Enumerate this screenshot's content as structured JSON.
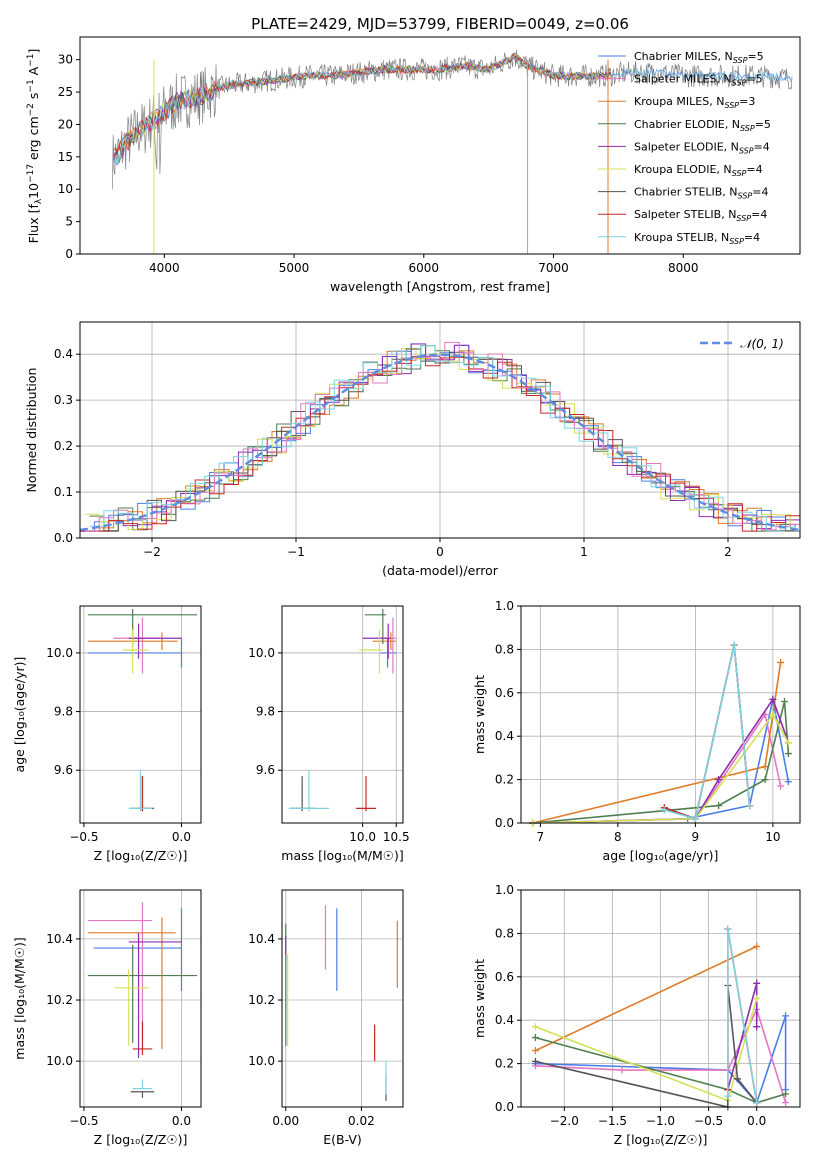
{
  "chart_data": [
    {
      "id": "spectrum",
      "type": "line",
      "title": "PLATE=2429, MJD=53799, FIBERID=0049, z=0.06",
      "xlabel": "wavelength [Angstrom, rest frame]",
      "ylabel_parts": [
        "Flux [f",
        "λ",
        "10",
        "−17",
        " erg cm",
        "−2",
        " s",
        "−1",
        " A",
        "−1",
        "]"
      ],
      "xlim": [
        3350,
        8900
      ],
      "ylim": [
        0,
        33.5
      ],
      "xticks": [
        4000,
        5000,
        6000,
        7000,
        8000
      ],
      "yticks": [
        0,
        5,
        10,
        15,
        20,
        25,
        30
      ],
      "grid": false,
      "legend_position": "upper right",
      "spectrum_x": [
        3600,
        3650,
        3700,
        3750,
        3800,
        3850,
        3900,
        3950,
        4000,
        4100,
        4200,
        4300,
        4400,
        4500,
        4700,
        4900,
        5100,
        5300,
        5500,
        5700,
        5900,
        6100,
        6300,
        6500,
        6600,
        6700,
        6800,
        7000,
        7200,
        7400,
        7600,
        7800,
        8000,
        8300,
        8600,
        8900
      ],
      "spectrum_y": [
        14.5,
        15.5,
        17,
        18,
        19,
        19.5,
        20.5,
        21,
        22,
        23.5,
        24,
        24.5,
        25.5,
        26,
        26.5,
        27,
        27.5,
        27.5,
        28,
        28.5,
        28.5,
        28.5,
        29,
        28.5,
        29.5,
        30.5,
        29,
        27.5,
        27.5,
        27.5,
        28,
        28,
        27.5,
        27.5,
        27.5,
        27
      ],
      "series": [
        {
          "name": "Chabrier MILES, N",
          "sub": "SSP",
          "n": "5",
          "color": "#4a7de8"
        },
        {
          "name": "Salpeter MILES, N",
          "sub": "SSP",
          "n": "5",
          "color": "#e377c2"
        },
        {
          "name": "Kroupa MILES, N",
          "sub": "SSP",
          "n": "3",
          "color": "#e07b28"
        },
        {
          "name": "Chabrier ELODIE, N",
          "sub": "SSP",
          "n": "5",
          "color": "#4f7f4f"
        },
        {
          "name": "Salpeter ELODIE, N",
          "sub": "SSP",
          "n": "4",
          "color": "#8e2db0"
        },
        {
          "name": "Kroupa ELODIE, N",
          "sub": "SSP",
          "n": "4",
          "color": "#d4e157"
        },
        {
          "name": "Chabrier STELIB, N",
          "sub": "SSP",
          "n": "4",
          "color": "#555555"
        },
        {
          "name": "Salpeter STELIB, N",
          "sub": "SSP",
          "n": "4",
          "color": "#c62828"
        },
        {
          "name": "Kroupa STELIB, N",
          "sub": "SSP",
          "n": "4",
          "color": "#7fd3e0"
        }
      ]
    },
    {
      "id": "residuals",
      "type": "line",
      "xlabel": "(data-model)/error",
      "ylabel": "Normed distribution",
      "xlim": [
        -2.5,
        2.5
      ],
      "ylim": [
        0,
        0.47
      ],
      "xticks": [
        -2,
        -1,
        0,
        1,
        2
      ],
      "yticks": [
        0.0,
        0.1,
        0.2,
        0.3,
        0.4
      ],
      "grid": true,
      "legend": "𝒩(0, 1)",
      "legend_position": "upper right",
      "normal_curve": {
        "mean": 0,
        "sigma": 1,
        "color": "#5b8ee0"
      }
    },
    {
      "id": "age_vs_Z",
      "type": "scatter",
      "xlabel": "Z [log₁₀(Z/Z☉)]",
      "ylabel": "age  [log₁₀(age/yr)]",
      "xlim": [
        -0.52,
        0.1
      ],
      "ylim": [
        9.42,
        10.16
      ],
      "xticks": [
        -0.5,
        0.0
      ],
      "yticks": [
        9.6,
        9.8,
        10.0
      ],
      "grid": true,
      "points": [
        {
          "x": 0.0,
          "y": 10.0,
          "xerr": [
            0.48,
            0.0
          ],
          "yerr": [
            0.05,
            0.05
          ]
        },
        {
          "x": -0.2,
          "y": 10.05,
          "xerr": [
            0.15,
            0.08
          ],
          "yerr": [
            0.12,
            0.07
          ]
        },
        {
          "x": -0.1,
          "y": 10.04,
          "xerr": [
            0.38,
            0.08
          ],
          "yerr": [
            0.03,
            0.03
          ]
        },
        {
          "x": -0.25,
          "y": 10.13,
          "xerr": [
            0.23,
            0.33
          ],
          "yerr": [
            0.1,
            0.02
          ]
        },
        {
          "x": -0.22,
          "y": 10.05,
          "xerr": [
            0.05,
            0.22
          ],
          "yerr": [
            0.07,
            0.05
          ]
        },
        {
          "x": -0.25,
          "y": 10.01,
          "xerr": [
            0.05,
            0.08
          ],
          "yerr": [
            0.08,
            0.07
          ]
        },
        {
          "x": -0.2,
          "y": 9.47,
          "xerr": [
            0.06,
            0.06
          ],
          "yerr": [
            0.01,
            0.11
          ]
        },
        {
          "x": -0.2,
          "y": 9.47,
          "xerr": [
            0.03,
            0.03
          ],
          "yerr": [
            0.01,
            0.11
          ]
        },
        {
          "x": -0.21,
          "y": 9.47,
          "xerr": [
            0.06,
            0.06
          ],
          "yerr": [
            0.01,
            0.13
          ]
        }
      ]
    },
    {
      "id": "age_vs_mass",
      "type": "scatter",
      "xlabel": "mass [log₁₀(M/M☉)]",
      "ylabel": "",
      "xlim": [
        8.8,
        10.6
      ],
      "ylim": [
        9.42,
        10.16
      ],
      "xticks": [
        10.0,
        10.5
      ],
      "yticks": [
        9.6,
        9.8,
        10.0
      ],
      "grid": true,
      "points": [
        {
          "x": 10.37,
          "y": 10.0,
          "xerr": [
            0.13,
            0.13
          ],
          "yerr": [
            0.05,
            0.05
          ]
        },
        {
          "x": 10.45,
          "y": 10.05,
          "xerr": [
            0.2,
            0.05
          ],
          "yerr": [
            0.12,
            0.07
          ]
        },
        {
          "x": 10.42,
          "y": 10.04,
          "xerr": [
            0.27,
            0.07
          ],
          "yerr": [
            0.03,
            0.03
          ]
        },
        {
          "x": 10.3,
          "y": 10.13,
          "xerr": [
            0.27,
            0.05
          ],
          "yerr": [
            0.1,
            0.02
          ]
        },
        {
          "x": 10.38,
          "y": 10.05,
          "xerr": [
            0.38,
            0.03
          ],
          "yerr": [
            0.07,
            0.05
          ]
        },
        {
          "x": 10.25,
          "y": 10.01,
          "xerr": [
            0.3,
            0.05
          ],
          "yerr": [
            0.08,
            0.07
          ]
        },
        {
          "x": 9.1,
          "y": 9.47,
          "xerr": [
            0.18,
            0.18
          ],
          "yerr": [
            0.01,
            0.11
          ]
        },
        {
          "x": 10.05,
          "y": 9.47,
          "xerr": [
            0.15,
            0.15
          ],
          "yerr": [
            0.01,
            0.11
          ]
        },
        {
          "x": 9.2,
          "y": 9.47,
          "xerr": [
            0.3,
            0.3
          ],
          "yerr": [
            0.01,
            0.13
          ]
        }
      ]
    },
    {
      "id": "weight_vs_age",
      "type": "line",
      "xlabel": "age  [log₁₀(age/yr)]",
      "ylabel": "mass weight",
      "xlim": [
        6.75,
        10.35
      ],
      "ylim": [
        0,
        1.0
      ],
      "xticks": [
        7,
        8,
        9,
        10
      ],
      "yticks": [
        0.0,
        0.2,
        0.4,
        0.6,
        0.8,
        1.0
      ],
      "grid": true,
      "series": [
        {
          "x": [
            6.9,
            8.9,
            9.7,
            10.0,
            10.2
          ],
          "y": [
            0.0,
            0.02,
            0.08,
            0.57,
            0.19
          ]
        },
        {
          "x": [
            6.9,
            9.0,
            9.9,
            10.1
          ],
          "y": [
            0.0,
            0.02,
            0.5,
            0.17
          ]
        },
        {
          "x": [
            6.9,
            9.9,
            10.1
          ],
          "y": [
            0.0,
            0.26,
            0.74
          ]
        },
        {
          "x": [
            6.9,
            9.3,
            9.9,
            10.15,
            10.2
          ],
          "y": [
            0.0,
            0.08,
            0.2,
            0.56,
            0.32
          ]
        },
        {
          "x": [
            6.9,
            9.0,
            9.3,
            10.0,
            10.2
          ],
          "y": [
            0.0,
            0.02,
            0.2,
            0.57,
            0.37
          ]
        },
        {
          "x": [
            6.9,
            9.0,
            10.0,
            10.2
          ],
          "y": [
            0.0,
            0.02,
            0.5,
            0.37
          ]
        },
        {
          "x": [
            8.6,
            9.0,
            9.5,
            9.7
          ],
          "y": [
            0.07,
            0.02,
            0.82,
            0.08
          ]
        },
        {
          "x": [
            8.6,
            9.0,
            9.5,
            9.7
          ],
          "y": [
            0.07,
            0.02,
            0.82,
            0.08
          ]
        },
        {
          "x": [
            8.6,
            9.0,
            9.5,
            9.7
          ],
          "y": [
            0.06,
            0.02,
            0.82,
            0.08
          ]
        }
      ]
    },
    {
      "id": "mass_vs_Z",
      "type": "scatter",
      "xlabel": "Z [log₁₀(Z/Z☉)]",
      "ylabel": "mass [log₁₀(M/M☉)]",
      "xlim": [
        -0.52,
        0.1
      ],
      "ylim": [
        9.85,
        10.56
      ],
      "xticks": [
        -0.5,
        0.0
      ],
      "yticks": [
        10.0,
        10.2,
        10.4
      ],
      "grid": true,
      "points": [
        {
          "x": 0.0,
          "y": 10.37,
          "xerr": [
            0.45,
            0.0
          ],
          "yerr": [
            0.14,
            0.13
          ]
        },
        {
          "x": -0.2,
          "y": 10.46,
          "xerr": [
            0.28,
            0.05
          ],
          "yerr": [
            0.4,
            0.06
          ]
        },
        {
          "x": -0.1,
          "y": 10.42,
          "xerr": [
            0.38,
            0.07
          ],
          "yerr": [
            0.38,
            0.05
          ]
        },
        {
          "x": -0.25,
          "y": 10.28,
          "xerr": [
            0.23,
            0.33
          ],
          "yerr": [
            0.22,
            0.1
          ]
        },
        {
          "x": -0.22,
          "y": 10.39,
          "xerr": [
            0.05,
            0.22
          ],
          "yerr": [
            0.38,
            0.03
          ]
        },
        {
          "x": -0.27,
          "y": 10.24,
          "xerr": [
            0.07,
            0.1
          ],
          "yerr": [
            0.19,
            0.06
          ]
        },
        {
          "x": -0.2,
          "y": 9.9,
          "xerr": [
            0.06,
            0.06
          ],
          "yerr": [
            0.02,
            0.0
          ]
        },
        {
          "x": -0.2,
          "y": 10.04,
          "xerr": [
            0.05,
            0.05
          ],
          "yerr": [
            0.02,
            0.09
          ]
        },
        {
          "x": -0.2,
          "y": 9.91,
          "xerr": [
            0.05,
            0.05
          ],
          "yerr": [
            0.0,
            0.03
          ]
        }
      ]
    },
    {
      "id": "mass_vs_ebv",
      "type": "scatter",
      "xlabel": "E(B-V)",
      "ylabel": "",
      "xlim": [
        -0.001,
        0.031
      ],
      "ylim": [
        9.85,
        10.56
      ],
      "xticks": [
        0.0,
        0.02
      ],
      "yticks": [
        10.0,
        10.2,
        10.4
      ],
      "grid": true,
      "points": [
        {
          "x": 0.0135,
          "y": 10.37,
          "yerr": [
            0.14,
            0.13
          ]
        },
        {
          "x": 0.0105,
          "y": 10.41,
          "yerr": [
            0.11,
            0.1
          ]
        },
        {
          "x": 0.0295,
          "y": 10.35,
          "yerr": [
            0.11,
            0.11
          ]
        },
        {
          "x": 0.0,
          "y": 10.25,
          "yerr": [
            0.2,
            0.2
          ]
        },
        {
          "x": 0.0,
          "y": 10.38,
          "yerr": [
            0.03,
            0.03
          ]
        },
        {
          "x": 0.0005,
          "y": 10.2,
          "yerr": [
            0.15,
            0.15
          ]
        },
        {
          "x": 0.0265,
          "y": 9.93,
          "yerr": [
            0.06,
            0.02
          ]
        },
        {
          "x": 0.0235,
          "y": 10.04,
          "yerr": [
            0.04,
            0.08
          ]
        },
        {
          "x": 0.0265,
          "y": 9.95,
          "yerr": [
            0.06,
            0.05
          ]
        }
      ]
    },
    {
      "id": "weight_vs_Z",
      "type": "line",
      "xlabel": "Z [log₁₀(Z/Z☉)]",
      "ylabel": "mass weight",
      "xlim": [
        -2.45,
        0.45
      ],
      "ylim": [
        0,
        1.0
      ],
      "xticks": [
        -2.0,
        -1.5,
        -1.0,
        -0.5,
        0.0
      ],
      "yticks": [
        0.0,
        0.2,
        0.4,
        0.6,
        0.8,
        1.0
      ],
      "grid": true,
      "series": [
        {
          "x": [
            -2.3,
            -0.3,
            0.0,
            0.3,
            0.3
          ],
          "y": [
            0.2,
            0.17,
            0.02,
            0.42,
            0.08
          ]
        },
        {
          "x": [
            -2.3,
            -1.4,
            -0.3,
            0.0,
            0.3
          ],
          "y": [
            0.19,
            0.17,
            0.17,
            0.45,
            0.02
          ]
        },
        {
          "x": [
            -2.3,
            0.0
          ],
          "y": [
            0.26,
            0.74
          ]
        },
        {
          "x": [
            -2.3,
            -0.3,
            0.0,
            0.3
          ],
          "y": [
            0.32,
            0.08,
            0.02,
            0.06
          ]
        },
        {
          "x": [
            -0.3,
            0.0,
            0.0
          ],
          "y": [
            0.08,
            0.57,
            0.37
          ]
        },
        {
          "x": [
            -2.3,
            -0.3,
            0.0
          ],
          "y": [
            0.37,
            0.03,
            0.5
          ]
        },
        {
          "x": [
            -2.3,
            -0.3,
            -0.3,
            -0.2,
            0.0
          ],
          "y": [
            0.21,
            0.0,
            0.56,
            0.13,
            0.02
          ]
        },
        {
          "x": [
            -0.3,
            -0.3,
            0.0
          ],
          "y": [
            0.08,
            0.82,
            0.02
          ]
        },
        {
          "x": [
            -0.3,
            -0.3,
            0.0
          ],
          "y": [
            0.05,
            0.82,
            0.02
          ]
        }
      ]
    }
  ]
}
